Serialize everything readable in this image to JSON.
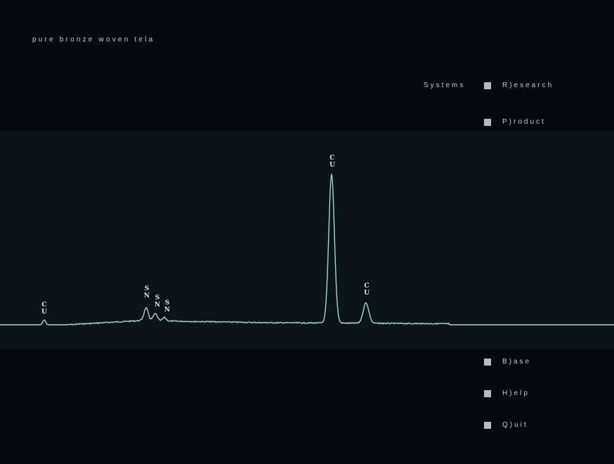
{
  "title": "pure bronze woven tela",
  "systems_label": "Systems",
  "menu_top": [
    {
      "label": "R)esearch"
    },
    {
      "label": "P)roduct"
    }
  ],
  "menu_bottom": [
    {
      "label": "B)ase"
    },
    {
      "label": "H)elp"
    },
    {
      "label": "Q)uit"
    }
  ],
  "spectrum": {
    "line_color": "#a8d4d0",
    "peak_labels": [
      {
        "lines": [
          "C",
          "U"
        ]
      },
      {
        "lines": [
          "S",
          "N"
        ]
      },
      {
        "lines": [
          "S",
          "N"
        ]
      },
      {
        "lines": [
          "S",
          "N"
        ]
      },
      {
        "lines": [
          "C",
          "U"
        ]
      },
      {
        "lines": [
          "C",
          "U"
        ]
      }
    ]
  }
}
